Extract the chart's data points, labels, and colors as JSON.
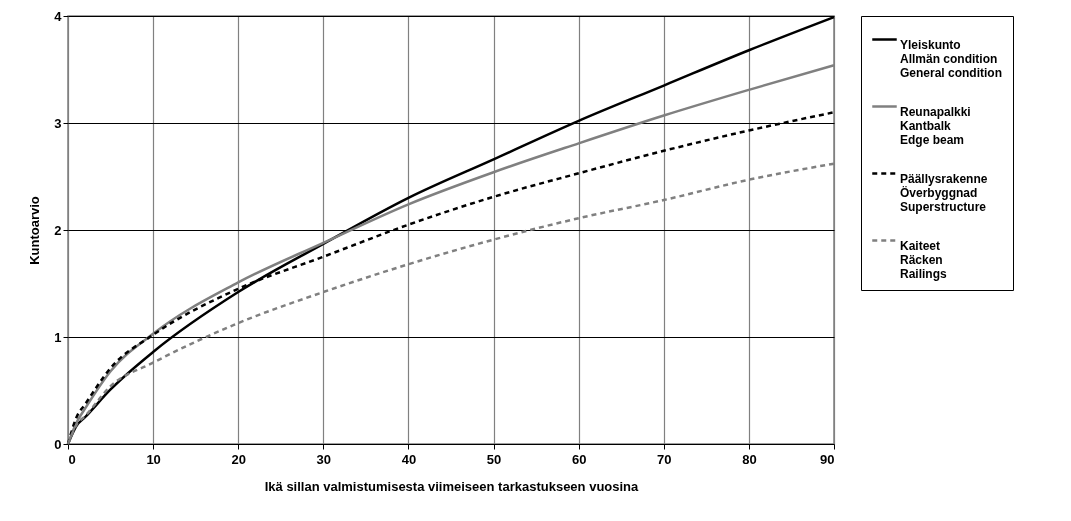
{
  "chart_data": {
    "type": "line",
    "xlabel": "Ikä sillan valmistumisesta viimeiseen tarkastukseen vuosina",
    "ylabel": "Kuntoarvio",
    "x": [
      0,
      1,
      2,
      5,
      10,
      20,
      30,
      40,
      50,
      60,
      70,
      80,
      90
    ],
    "xlim": [
      0,
      90
    ],
    "xticks": [
      0,
      10,
      20,
      30,
      40,
      50,
      60,
      70,
      80,
      90
    ],
    "ylim": [
      0,
      4
    ],
    "yticks": [
      0,
      1,
      2,
      3,
      4
    ],
    "grid": true,
    "legend": "right",
    "marker": "none",
    "series": [
      {
        "name": "Yleiskunto\nAllmän condition\nGeneral condition",
        "color": "#000000",
        "line_style": "solid",
        "values": [
          0,
          0.17,
          0.25,
          0.51,
          0.86,
          1.42,
          1.87,
          2.3,
          2.66,
          3.02,
          3.35,
          3.68,
          3.99
        ]
      },
      {
        "name": "Reunapalkki\nKantbalk\nEdge beam",
        "color": "#808080",
        "line_style": "solid",
        "values": [
          0,
          0.2,
          0.33,
          0.68,
          1.03,
          1.51,
          1.88,
          2.24,
          2.54,
          2.81,
          3.07,
          3.31,
          3.54
        ]
      },
      {
        "name": "Päällysrakenne\nÖverbyggnad\nSuperstructure",
        "color": "#000000",
        "line_style": "dashed",
        "values": [
          0,
          0.25,
          0.37,
          0.71,
          1.02,
          1.45,
          1.75,
          2.05,
          2.31,
          2.53,
          2.74,
          2.93,
          3.1
        ]
      },
      {
        "name": "Kaiteet\nRäcken\nRailings",
        "color": "#808080",
        "line_style": "dashed",
        "values": [
          0,
          0.18,
          0.26,
          0.54,
          0.76,
          1.13,
          1.42,
          1.68,
          1.91,
          2.11,
          2.28,
          2.47,
          2.62
        ]
      }
    ]
  }
}
